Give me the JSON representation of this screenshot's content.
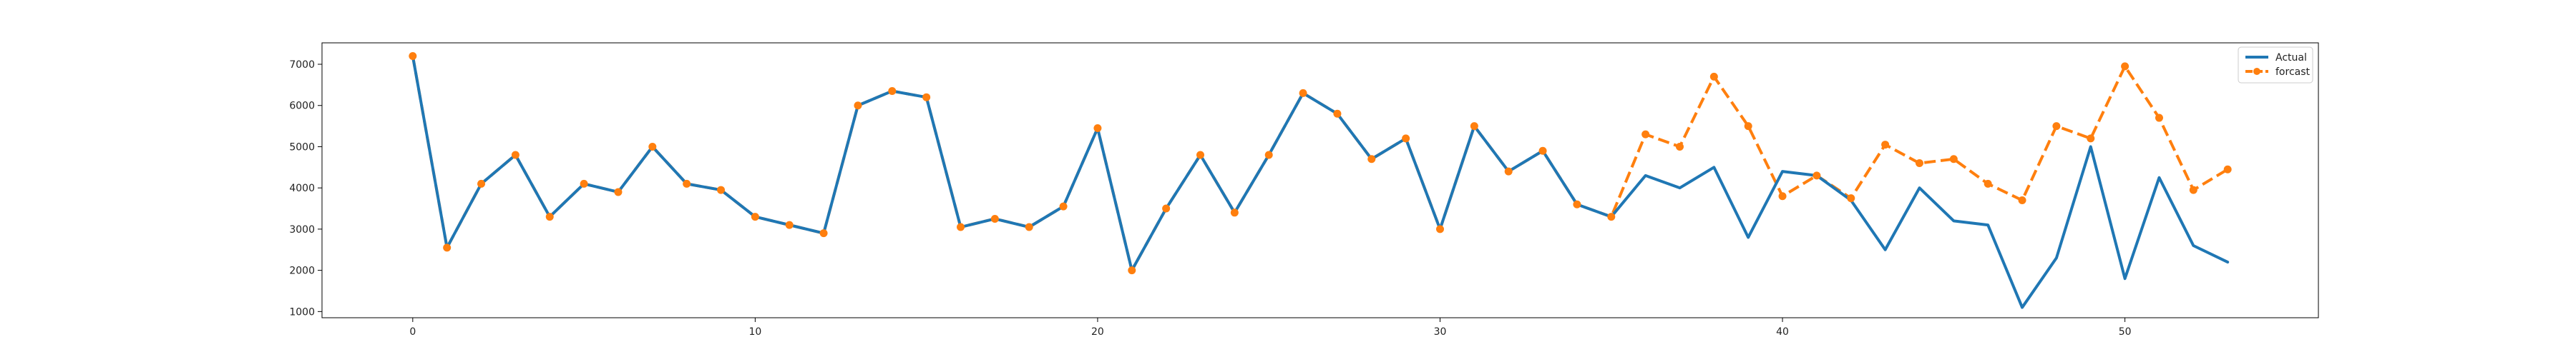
{
  "chart_data": {
    "type": "line",
    "x": [
      0,
      1,
      2,
      3,
      4,
      5,
      6,
      7,
      8,
      9,
      10,
      11,
      12,
      13,
      14,
      15,
      16,
      17,
      18,
      19,
      20,
      21,
      22,
      23,
      24,
      25,
      26,
      27,
      28,
      29,
      30,
      31,
      32,
      33,
      34,
      35,
      36,
      37,
      38,
      39,
      40,
      41,
      42,
      43,
      44,
      45,
      46,
      47,
      48,
      49,
      50,
      51,
      52,
      53
    ],
    "series": [
      {
        "name": "Actual",
        "color": "#1f77b4",
        "style": "solid",
        "values": [
          7200,
          2550,
          4100,
          4800,
          3300,
          4100,
          3900,
          5000,
          4100,
          3950,
          3300,
          3100,
          2900,
          6000,
          6350,
          6200,
          3050,
          3250,
          3050,
          3550,
          5450,
          2000,
          3500,
          4800,
          3400,
          4800,
          6300,
          5800,
          4700,
          5200,
          3000,
          5500,
          4400,
          4900,
          3600,
          3300,
          4300,
          4000,
          4500,
          2800,
          4400,
          4300,
          3700,
          2500,
          4000,
          3200,
          3100,
          1100,
          2300,
          5000,
          1800,
          4250,
          2600,
          2200
        ]
      },
      {
        "name": "forcast",
        "color": "#ff7f0e",
        "style": "dashed",
        "marker": "circle",
        "values": [
          7200,
          2550,
          4100,
          4800,
          3300,
          4100,
          3900,
          5000,
          4100,
          3950,
          3300,
          3100,
          2900,
          6000,
          6350,
          6200,
          3050,
          3250,
          3050,
          3550,
          5450,
          2000,
          3500,
          4800,
          3400,
          4800,
          6300,
          5800,
          4700,
          5200,
          3000,
          5500,
          4400,
          4900,
          3600,
          3300,
          5300,
          5000,
          6700,
          5500,
          3800,
          4300,
          3750,
          5050,
          4600,
          4700,
          4100,
          3700,
          5500,
          5200,
          6950,
          5700,
          3950,
          4450
        ]
      }
    ],
    "xticks": [
      0,
      10,
      20,
      30,
      40,
      50
    ],
    "yticks": [
      1000,
      2000,
      3000,
      4000,
      5000,
      6000,
      7000
    ],
    "xlim": [
      -2.65,
      55.65
    ],
    "ylim": [
      850,
      7520
    ],
    "legend": "top-right",
    "grid": false
  }
}
